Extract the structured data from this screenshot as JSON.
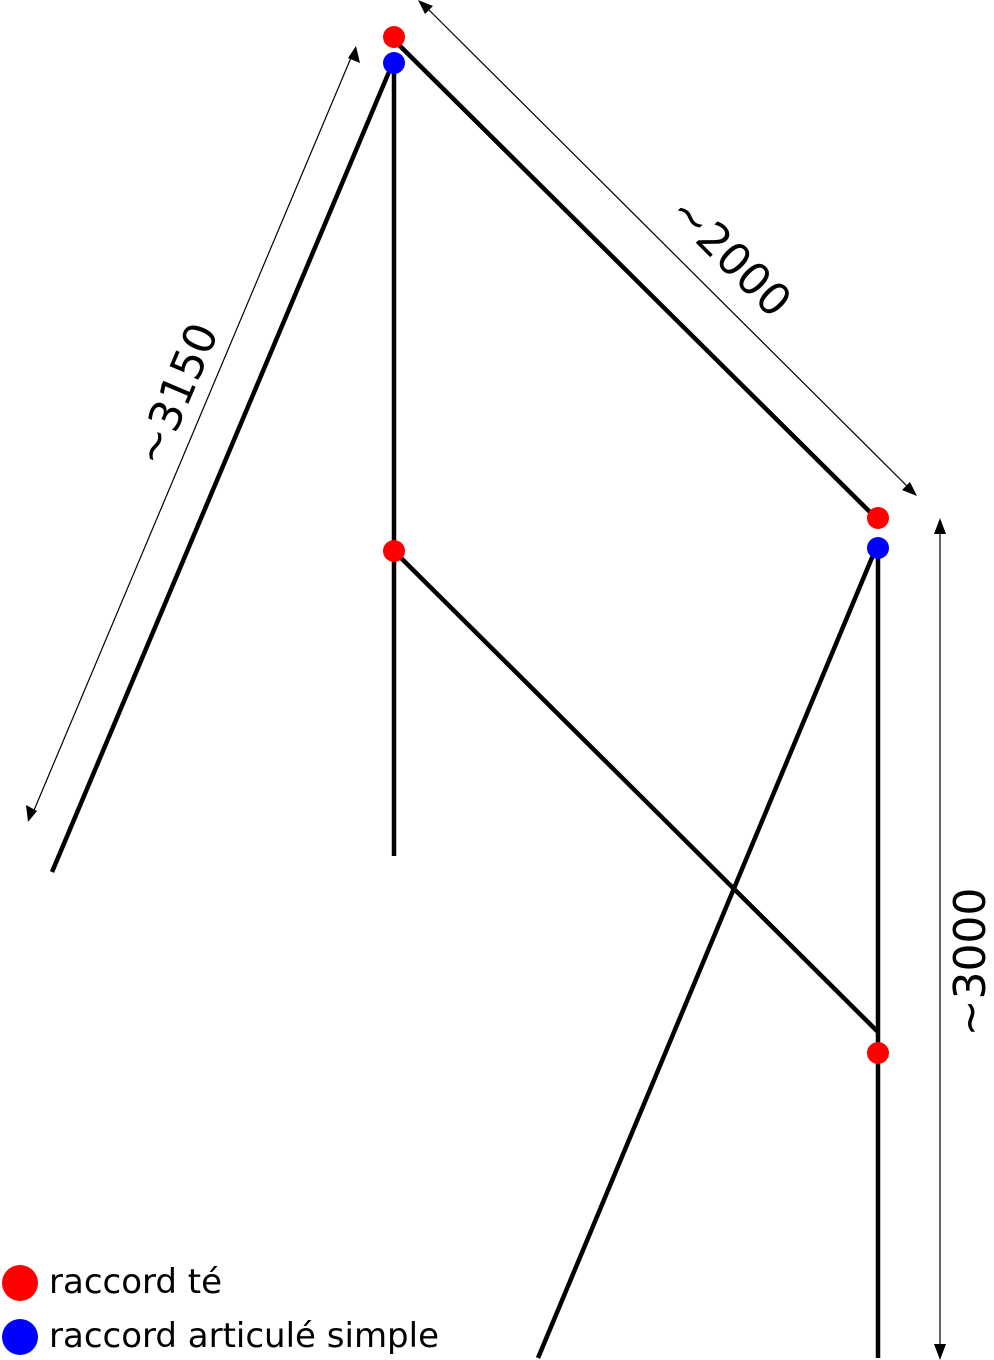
{
  "dimensions": {
    "left_length": "~3150",
    "top_length": "~2000",
    "right_height": "~3000"
  },
  "legend": {
    "tee_label": "raccord té",
    "hinge_label": "raccord articulé simple"
  },
  "colors": {
    "tee": "#ff0000",
    "hinge": "#0000ff",
    "bar": "#000000"
  }
}
